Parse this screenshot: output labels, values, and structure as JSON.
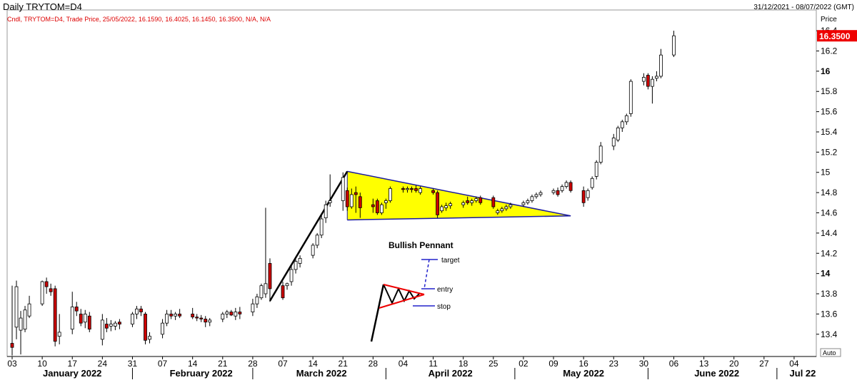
{
  "header": {
    "title": "Daily TRYTOM=D4",
    "date_range": "31/12/2021 - 08/07/2022 (GMT)",
    "legend": "Cndl, TRYTOM=D4, Trade Price, 25/05/2022, 16.1590, 16.4025, 16.1450, 16.3500, N/A, N/A"
  },
  "axis": {
    "price_label": "Price",
    "last_price_label": "16.3500",
    "auto_label": "Auto",
    "colors": {
      "up": "#ffffff",
      "down": "#cc0000",
      "pennant_fill": "#ffff00",
      "last_price_bg": "#ee0000"
    }
  },
  "annotation": {
    "title": "Bullish Pennant",
    "target": "target",
    "entry": "entry",
    "stop": "stop"
  },
  "chart_data": {
    "type": "candlestick",
    "title": "Daily TRYTOM=D4",
    "ylabel": "Price",
    "ylim": [
      13.18,
      16.45
    ],
    "y_ticks": [
      13.4,
      13.6,
      13.8,
      14,
      14.2,
      14.4,
      14.6,
      14.8,
      15,
      15.2,
      15.4,
      15.6,
      15.8,
      16,
      16.2,
      16.4
    ],
    "y_ticks_bold": [
      14,
      16
    ],
    "x_range": [
      "2022-01-03",
      "2022-07-08"
    ],
    "x_tick_dates": [
      "2022-01-03",
      "2022-01-10",
      "2022-01-17",
      "2022-01-24",
      "2022-01-31",
      "2022-02-07",
      "2022-02-14",
      "2022-02-21",
      "2022-02-28",
      "2022-03-07",
      "2022-03-14",
      "2022-03-21",
      "2022-03-28",
      "2022-04-04",
      "2022-04-11",
      "2022-04-18",
      "2022-04-25",
      "2022-05-02",
      "2022-05-09",
      "2022-05-16",
      "2022-05-23",
      "2022-05-30",
      "2022-06-06",
      "2022-06-13",
      "2022-06-20",
      "2022-06-27",
      "2022-07-04"
    ],
    "x_tick_labels": [
      "03",
      "10",
      "17",
      "24",
      "31",
      "07",
      "14",
      "21",
      "28",
      "07",
      "14",
      "21",
      "28",
      "04",
      "11",
      "18",
      "25",
      "02",
      "09",
      "16",
      "23",
      "30",
      "06",
      "13",
      "20",
      "27",
      "04"
    ],
    "month_labels": [
      {
        "label": "January 2022",
        "date": "2022-01-17"
      },
      {
        "label": "February 2022",
        "date": "2022-02-16"
      },
      {
        "label": "March 2022",
        "date": "2022-03-16"
      },
      {
        "label": "April 2022",
        "date": "2022-04-15"
      },
      {
        "label": "May 2022",
        "date": "2022-05-16"
      },
      {
        "label": "June 2022",
        "date": "2022-06-16"
      },
      {
        "label": "Jul 22",
        "date": "2022-07-06"
      }
    ],
    "month_separators": [
      "2022-01-31",
      "2022-02-28",
      "2022-03-31",
      "2022-04-30",
      "2022-05-31",
      "2022-06-30"
    ],
    "last_price": 16.35,
    "candles": [
      {
        "d": "2022-01-03",
        "o": 13.31,
        "h": 13.88,
        "l": 13.19,
        "c": 13.27
      },
      {
        "d": "2022-01-04",
        "o": 13.47,
        "h": 13.93,
        "l": 13.35,
        "c": 13.87
      },
      {
        "d": "2022-01-05",
        "o": 13.44,
        "h": 13.63,
        "l": 13.2,
        "c": 13.56
      },
      {
        "d": "2022-01-06",
        "o": 13.45,
        "h": 13.68,
        "l": 13.42,
        "c": 13.64
      },
      {
        "d": "2022-01-07",
        "o": 13.58,
        "h": 13.78,
        "l": 13.56,
        "c": 13.7
      },
      {
        "d": "2022-01-10",
        "o": 13.7,
        "h": 13.93,
        "l": 13.68,
        "c": 13.92
      },
      {
        "d": "2022-01-11",
        "o": 13.92,
        "h": 13.96,
        "l": 13.8,
        "c": 13.87
      },
      {
        "d": "2022-01-12",
        "o": 13.85,
        "h": 13.9,
        "l": 13.78,
        "c": 13.82
      },
      {
        "d": "2022-01-13",
        "o": 13.85,
        "h": 13.88,
        "l": 13.28,
        "c": 13.33
      },
      {
        "d": "2022-01-14",
        "o": 13.38,
        "h": 13.6,
        "l": 13.3,
        "c": 13.42
      },
      {
        "d": "2022-01-17",
        "o": 13.45,
        "h": 13.82,
        "l": 13.4,
        "c": 13.67
      },
      {
        "d": "2022-01-18",
        "o": 13.67,
        "h": 13.72,
        "l": 13.58,
        "c": 13.63
      },
      {
        "d": "2022-01-19",
        "o": 13.6,
        "h": 13.65,
        "l": 13.48,
        "c": 13.51
      },
      {
        "d": "2022-01-20",
        "o": 13.52,
        "h": 13.64,
        "l": 13.46,
        "c": 13.6
      },
      {
        "d": "2022-01-21",
        "o": 13.58,
        "h": 13.62,
        "l": 13.42,
        "c": 13.45
      },
      {
        "d": "2022-01-24",
        "o": 13.35,
        "h": 13.6,
        "l": 13.29,
        "c": 13.54
      },
      {
        "d": "2022-01-25",
        "o": 13.5,
        "h": 13.56,
        "l": 13.42,
        "c": 13.46
      },
      {
        "d": "2022-01-26",
        "o": 13.48,
        "h": 13.54,
        "l": 13.43,
        "c": 13.5
      },
      {
        "d": "2022-01-27",
        "o": 13.48,
        "h": 13.53,
        "l": 13.44,
        "c": 13.51
      },
      {
        "d": "2022-01-28",
        "o": 13.52,
        "h": 13.55,
        "l": 13.45,
        "c": 13.5
      },
      {
        "d": "2022-01-31",
        "o": 13.5,
        "h": 13.62,
        "l": 13.47,
        "c": 13.6
      },
      {
        "d": "2022-02-01",
        "o": 13.6,
        "h": 13.68,
        "l": 13.55,
        "c": 13.65
      },
      {
        "d": "2022-02-02",
        "o": 13.65,
        "h": 13.68,
        "l": 13.58,
        "c": 13.62
      },
      {
        "d": "2022-02-03",
        "o": 13.6,
        "h": 13.62,
        "l": 13.3,
        "c": 13.34
      },
      {
        "d": "2022-02-04",
        "o": 13.35,
        "h": 13.42,
        "l": 13.31,
        "c": 13.38
      },
      {
        "d": "2022-02-07",
        "o": 13.4,
        "h": 13.55,
        "l": 13.36,
        "c": 13.51
      },
      {
        "d": "2022-02-08",
        "o": 13.51,
        "h": 13.64,
        "l": 13.48,
        "c": 13.6
      },
      {
        "d": "2022-02-09",
        "o": 13.6,
        "h": 13.64,
        "l": 13.55,
        "c": 13.58
      },
      {
        "d": "2022-02-10",
        "o": 13.58,
        "h": 13.62,
        "l": 13.54,
        "c": 13.6
      },
      {
        "d": "2022-02-11",
        "o": 13.6,
        "h": 13.65,
        "l": 13.56,
        "c": 13.58
      },
      {
        "d": "2022-02-14",
        "o": 13.6,
        "h": 13.66,
        "l": 13.55,
        "c": 13.57
      },
      {
        "d": "2022-02-15",
        "o": 13.57,
        "h": 13.6,
        "l": 13.53,
        "c": 13.56
      },
      {
        "d": "2022-02-16",
        "o": 13.56,
        "h": 13.59,
        "l": 13.52,
        "c": 13.55
      },
      {
        "d": "2022-02-17",
        "o": 13.55,
        "h": 13.58,
        "l": 13.47,
        "c": 13.52
      },
      {
        "d": "2022-02-18",
        "o": 13.52,
        "h": 13.56,
        "l": 13.48,
        "c": 13.54
      },
      {
        "d": "2022-02-21",
        "o": 13.55,
        "h": 13.62,
        "l": 13.52,
        "c": 13.6
      },
      {
        "d": "2022-02-22",
        "o": 13.6,
        "h": 13.64,
        "l": 13.56,
        "c": 13.62
      },
      {
        "d": "2022-02-23",
        "o": 13.62,
        "h": 13.64,
        "l": 13.58,
        "c": 13.59
      },
      {
        "d": "2022-02-24",
        "o": 13.58,
        "h": 13.66,
        "l": 13.54,
        "c": 13.62
      },
      {
        "d": "2022-02-25",
        "o": 13.62,
        "h": 13.67,
        "l": 13.55,
        "c": 13.6
      },
      {
        "d": "2022-02-28",
        "o": 13.62,
        "h": 13.75,
        "l": 13.58,
        "c": 13.7
      },
      {
        "d": "2022-03-01",
        "o": 13.7,
        "h": 13.8,
        "l": 13.66,
        "c": 13.77
      },
      {
        "d": "2022-03-02",
        "o": 13.76,
        "h": 13.9,
        "l": 13.74,
        "c": 13.88
      },
      {
        "d": "2022-03-03",
        "o": 13.8,
        "h": 14.65,
        "l": 13.76,
        "c": 13.9
      },
      {
        "d": "2022-03-04",
        "o": 14.1,
        "h": 14.15,
        "l": 13.72,
        "c": 13.85
      },
      {
        "d": "2022-03-07",
        "o": 13.88,
        "h": 13.92,
        "l": 13.74,
        "c": 13.76
      },
      {
        "d": "2022-03-08",
        "o": 13.88,
        "h": 13.91,
        "l": 13.84,
        "c": 13.9
      },
      {
        "d": "2022-03-09",
        "o": 13.92,
        "h": 14.08,
        "l": 13.88,
        "c": 14.04
      },
      {
        "d": "2022-03-10",
        "o": 14.04,
        "h": 14.14,
        "l": 14.0,
        "c": 14.12
      },
      {
        "d": "2022-03-11",
        "o": 14.1,
        "h": 14.18,
        "l": 14.06,
        "c": 14.15
      },
      {
        "d": "2022-03-14",
        "o": 14.18,
        "h": 14.3,
        "l": 14.15,
        "c": 14.28
      },
      {
        "d": "2022-03-15",
        "o": 14.28,
        "h": 14.4,
        "l": 14.25,
        "c": 14.38
      },
      {
        "d": "2022-03-16",
        "o": 14.38,
        "h": 14.58,
        "l": 14.35,
        "c": 14.54
      },
      {
        "d": "2022-03-17",
        "o": 14.55,
        "h": 14.72,
        "l": 14.5,
        "c": 14.68
      },
      {
        "d": "2022-03-18",
        "o": 14.7,
        "h": 14.98,
        "l": 14.66,
        "c": 14.72
      },
      {
        "d": "2022-03-21",
        "o": 14.72,
        "h": 15.0,
        "l": 14.62,
        "c": 14.95
      },
      {
        "d": "2022-03-22",
        "o": 14.82,
        "h": 14.85,
        "l": 14.62,
        "c": 14.66
      },
      {
        "d": "2022-03-23",
        "o": 14.66,
        "h": 14.84,
        "l": 14.64,
        "c": 14.78
      },
      {
        "d": "2022-03-24",
        "o": 14.8,
        "h": 14.86,
        "l": 14.6,
        "c": 14.78
      },
      {
        "d": "2022-03-25",
        "o": 14.76,
        "h": 14.8,
        "l": 14.55,
        "c": 14.65
      },
      {
        "d": "2022-03-28",
        "o": 14.68,
        "h": 14.74,
        "l": 14.6,
        "c": 14.66
      },
      {
        "d": "2022-03-29",
        "o": 14.72,
        "h": 14.74,
        "l": 14.58,
        "c": 14.6
      },
      {
        "d": "2022-03-30",
        "o": 14.6,
        "h": 14.7,
        "l": 14.58,
        "c": 14.68
      },
      {
        "d": "2022-03-31",
        "o": 14.7,
        "h": 14.74,
        "l": 14.64,
        "c": 14.72
      },
      {
        "d": "2022-04-01",
        "o": 14.72,
        "h": 14.86,
        "l": 14.7,
        "c": 14.84
      },
      {
        "d": "2022-04-04",
        "o": 14.84,
        "h": 14.86,
        "l": 14.8,
        "c": 14.83
      },
      {
        "d": "2022-04-05",
        "o": 14.83,
        "h": 14.86,
        "l": 14.8,
        "c": 14.84
      },
      {
        "d": "2022-04-06",
        "o": 14.84,
        "h": 14.86,
        "l": 14.8,
        "c": 14.83
      },
      {
        "d": "2022-04-07",
        "o": 14.84,
        "h": 14.87,
        "l": 14.8,
        "c": 14.82
      },
      {
        "d": "2022-04-08",
        "o": 14.8,
        "h": 14.86,
        "l": 14.78,
        "c": 14.84
      },
      {
        "d": "2022-04-11",
        "o": 14.82,
        "h": 14.84,
        "l": 14.78,
        "c": 14.8
      },
      {
        "d": "2022-04-12",
        "o": 14.8,
        "h": 14.82,
        "l": 14.55,
        "c": 14.58
      },
      {
        "d": "2022-04-13",
        "o": 14.62,
        "h": 14.68,
        "l": 14.6,
        "c": 14.66
      },
      {
        "d": "2022-04-14",
        "o": 14.65,
        "h": 14.7,
        "l": 14.62,
        "c": 14.67
      },
      {
        "d": "2022-04-15",
        "o": 14.67,
        "h": 14.71,
        "l": 14.64,
        "c": 14.69
      },
      {
        "d": "2022-04-18",
        "o": 14.68,
        "h": 14.72,
        "l": 14.65,
        "c": 14.7
      },
      {
        "d": "2022-04-19",
        "o": 14.72,
        "h": 14.76,
        "l": 14.68,
        "c": 14.7
      },
      {
        "d": "2022-04-20",
        "o": 14.7,
        "h": 14.74,
        "l": 14.67,
        "c": 14.72
      },
      {
        "d": "2022-04-21",
        "o": 14.72,
        "h": 14.76,
        "l": 14.7,
        "c": 14.74
      },
      {
        "d": "2022-04-22",
        "o": 14.75,
        "h": 14.77,
        "l": 14.68,
        "c": 14.7
      },
      {
        "d": "2022-04-25",
        "o": 14.75,
        "h": 14.77,
        "l": 14.64,
        "c": 14.66
      },
      {
        "d": "2022-04-26",
        "o": 14.6,
        "h": 14.64,
        "l": 14.58,
        "c": 14.62
      },
      {
        "d": "2022-04-27",
        "o": 14.62,
        "h": 14.66,
        "l": 14.6,
        "c": 14.64
      },
      {
        "d": "2022-04-28",
        "o": 14.64,
        "h": 14.68,
        "l": 14.62,
        "c": 14.66
      },
      {
        "d": "2022-04-29",
        "o": 14.66,
        "h": 14.7,
        "l": 14.64,
        "c": 14.68
      },
      {
        "d": "2022-05-02",
        "o": 14.68,
        "h": 14.72,
        "l": 14.66,
        "c": 14.7
      },
      {
        "d": "2022-05-03",
        "o": 14.7,
        "h": 14.74,
        "l": 14.68,
        "c": 14.72
      },
      {
        "d": "2022-05-04",
        "o": 14.72,
        "h": 14.78,
        "l": 14.7,
        "c": 14.76
      },
      {
        "d": "2022-05-05",
        "o": 14.76,
        "h": 14.8,
        "l": 14.74,
        "c": 14.78
      },
      {
        "d": "2022-05-06",
        "o": 14.78,
        "h": 14.82,
        "l": 14.76,
        "c": 14.8
      },
      {
        "d": "2022-05-09",
        "o": 14.8,
        "h": 14.84,
        "l": 14.78,
        "c": 14.82
      },
      {
        "d": "2022-05-10",
        "o": 14.82,
        "h": 14.85,
        "l": 14.76,
        "c": 14.78
      },
      {
        "d": "2022-05-11",
        "o": 14.82,
        "h": 14.88,
        "l": 14.8,
        "c": 14.86
      },
      {
        "d": "2022-05-12",
        "o": 14.86,
        "h": 14.92,
        "l": 14.84,
        "c": 14.9
      },
      {
        "d": "2022-05-13",
        "o": 14.9,
        "h": 14.92,
        "l": 14.8,
        "c": 14.82
      },
      {
        "d": "2022-05-16",
        "o": 14.82,
        "h": 14.86,
        "l": 14.66,
        "c": 14.7
      },
      {
        "d": "2022-05-17",
        "o": 14.75,
        "h": 14.84,
        "l": 14.72,
        "c": 14.82
      },
      {
        "d": "2022-05-18",
        "o": 14.85,
        "h": 14.96,
        "l": 14.83,
        "c": 14.94
      },
      {
        "d": "2022-05-19",
        "o": 14.96,
        "h": 15.12,
        "l": 14.93,
        "c": 15.1
      },
      {
        "d": "2022-05-20",
        "o": 15.1,
        "h": 15.3,
        "l": 15.08,
        "c": 15.26
      },
      {
        "d": "2022-05-23",
        "o": 15.26,
        "h": 15.38,
        "l": 15.22,
        "c": 15.34
      },
      {
        "d": "2022-05-24",
        "o": 15.32,
        "h": 15.46,
        "l": 15.3,
        "c": 15.44
      },
      {
        "d": "2022-05-25",
        "o": 15.44,
        "h": 15.52,
        "l": 15.4,
        "c": 15.5
      },
      {
        "d": "2022-05-26",
        "o": 15.5,
        "h": 15.58,
        "l": 15.47,
        "c": 15.56
      },
      {
        "d": "2022-05-27",
        "o": 15.58,
        "h": 15.92,
        "l": 15.55,
        "c": 15.9
      },
      {
        "d": "2022-05-30",
        "o": 15.9,
        "h": 15.98,
        "l": 15.86,
        "c": 15.94
      },
      {
        "d": "2022-05-31",
        "o": 15.96,
        "h": 15.98,
        "l": 15.82,
        "c": 15.85
      },
      {
        "d": "2022-06-01",
        "o": 15.85,
        "h": 15.95,
        "l": 15.68,
        "c": 15.92
      },
      {
        "d": "2022-06-02",
        "o": 15.93,
        "h": 16.0,
        "l": 15.9,
        "c": 15.95
      },
      {
        "d": "2022-06-03",
        "o": 15.95,
        "h": 16.22,
        "l": 15.93,
        "c": 16.16
      },
      {
        "d": "2022-06-06",
        "o": 16.16,
        "h": 16.4,
        "l": 16.14,
        "c": 16.35
      }
    ],
    "pennant": {
      "points": [
        [
          "2022-03-22",
          15.01
        ],
        [
          "2022-05-13",
          14.57
        ],
        [
          "2022-03-22",
          14.53
        ]
      ]
    },
    "flagpole": {
      "points": [
        [
          "2022-03-04",
          13.73
        ],
        [
          "2022-03-22",
          15.01
        ]
      ]
    }
  }
}
